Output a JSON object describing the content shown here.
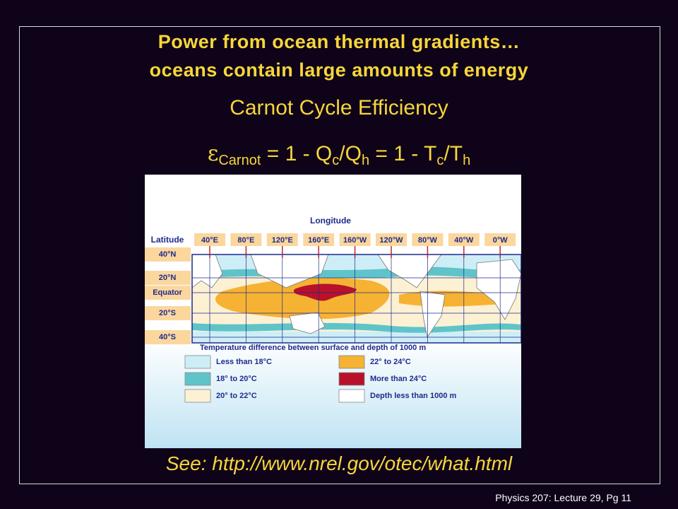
{
  "slide": {
    "title": [
      "Power from ocean thermal gradients…",
      "oceans contain large amounts of energy"
    ],
    "subtitle": "Carnot Cycle Efficiency",
    "formula": [
      "ε",
      "Carnot",
      " = 1 - Q",
      "c",
      "/Q",
      "h",
      " = 1 - T",
      "c",
      "/T",
      "h"
    ],
    "map": {
      "longitude_title": "Longitude",
      "longitudes": [
        "40°E",
        "80°E",
        "120°E",
        "160°E",
        "160°W",
        "120°W",
        "80°W",
        "40°W",
        "0°W"
      ],
      "latitude_title": "Latitude",
      "latitudes": [
        "40°N",
        "20°N",
        "Equator",
        "20°S",
        "40°S"
      ],
      "legend_title": "Temperature difference between surface and depth of 1000 m",
      "legend": [
        {
          "label": "Less than 18°C",
          "color": "#cdeef6"
        },
        {
          "label": "18° to 20°C",
          "color": "#5fc4c9"
        },
        {
          "label": "20° to 22°C",
          "color": "#fdf1d4"
        },
        {
          "label": "22° to 24°C",
          "color": "#f6b233"
        },
        {
          "label": "More than 24°C",
          "color": "#b8122a"
        },
        {
          "label": "Depth less than 1000 m",
          "color": "#ffffff"
        }
      ]
    },
    "link": "See:  http://www.nrel.gov/otec/what.html",
    "footer": "Physics 207: Lecture 29, Pg 11"
  }
}
